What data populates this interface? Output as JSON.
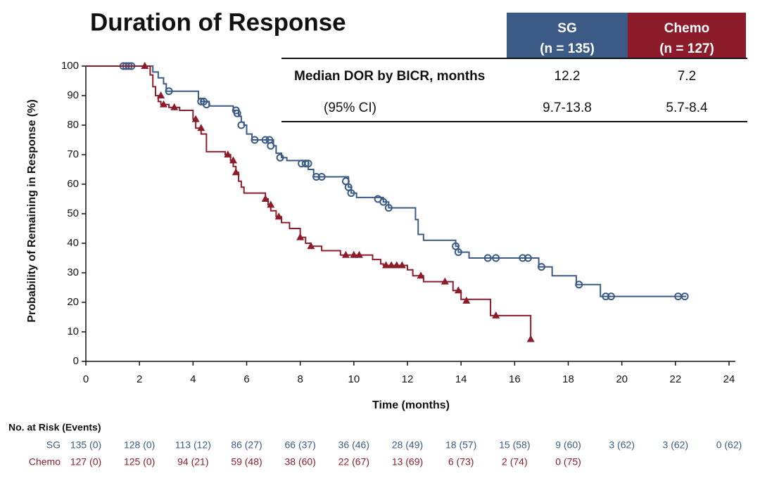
{
  "chart_data": {
    "type": "step",
    "title": "Duration of Response",
    "x_label": "Time (months)",
    "y_label": "Probability of Remaining in Response (%)",
    "xlim": [
      0,
      24
    ],
    "ylim": [
      0,
      100
    ],
    "xticks": [
      0,
      2,
      4,
      6,
      8,
      10,
      12,
      14,
      16,
      18,
      20,
      22,
      24
    ],
    "yticks": [
      0,
      10,
      20,
      30,
      40,
      50,
      60,
      70,
      80,
      90,
      100
    ],
    "series": [
      {
        "name": "SG",
        "color": "#3b5a85",
        "marker": "circle",
        "x": [
          0,
          2.5,
          2.7,
          2.9,
          3.0,
          4.2,
          4.3,
          4.6,
          5.5,
          5.7,
          5.8,
          5.9,
          6.0,
          6.2,
          7.0,
          7.1,
          7.3,
          7.5,
          8.3,
          8.5,
          9.8,
          9.9,
          10.1,
          11.1,
          11.3,
          12.3,
          12.4,
          12.6,
          13.8,
          13.9,
          14.3,
          16.9,
          17.4,
          18.3,
          19.2,
          22.4
        ],
        "values": [
          100,
          98,
          96,
          94,
          91.5,
          89,
          88,
          86.5,
          85,
          83,
          81,
          80,
          77,
          75,
          73,
          70.5,
          69,
          68,
          65,
          62.5,
          59,
          57,
          55.5,
          54,
          52,
          48,
          43,
          41,
          39,
          37,
          35,
          32,
          29,
          26,
          22,
          22
        ],
        "censor_x": [
          1.4,
          1.5,
          1.6,
          1.7,
          3.1,
          4.3,
          4.4,
          4.5,
          5.6,
          5.65,
          5.8,
          6.3,
          6.7,
          6.85,
          6.9,
          7.25,
          8.05,
          8.2,
          8.3,
          8.6,
          8.8,
          9.7,
          9.8,
          9.9,
          10.9,
          11.1,
          11.3,
          13.8,
          13.9,
          15.0,
          15.3,
          16.3,
          16.5,
          17.0,
          18.4,
          19.4,
          19.6,
          22.1,
          22.35
        ],
        "censor_y": [
          100,
          100,
          100,
          100,
          91.5,
          88,
          88,
          87,
          85,
          84,
          80,
          75,
          75,
          75,
          73,
          69,
          67,
          67,
          67,
          62.5,
          62.5,
          61,
          59,
          57,
          55,
          54,
          52,
          39,
          37,
          35,
          35,
          35,
          35,
          32,
          26,
          22,
          22,
          22,
          22
        ]
      },
      {
        "name": "Chemo",
        "color": "#8c1c2a",
        "marker": "triangle",
        "x": [
          0,
          2.4,
          2.5,
          2.6,
          2.7,
          2.8,
          3.1,
          3.5,
          4.0,
          4.1,
          4.3,
          4.5,
          5.2,
          5.4,
          5.5,
          5.6,
          5.7,
          5.8,
          5.9,
          6.7,
          6.8,
          6.9,
          7.1,
          7.3,
          7.6,
          8.0,
          8.2,
          8.4,
          8.8,
          9.5,
          10.7,
          11.0,
          11.1,
          12.0,
          12.2,
          12.6,
          13.7,
          14.0,
          15.1,
          16.6
        ],
        "values": [
          100,
          97,
          93,
          90,
          88,
          87,
          86,
          85,
          82,
          79,
          77,
          71,
          70,
          68,
          66,
          64,
          61,
          59,
          57,
          55,
          53,
          51,
          49,
          47,
          45,
          42,
          40,
          39,
          37.5,
          36,
          34.5,
          33,
          32.5,
          31,
          29,
          27,
          24,
          21,
          15.5,
          8
        ],
        "censor_x": [
          2.2,
          2.8,
          2.9,
          3.3,
          4.1,
          4.3,
          5.3,
          5.5,
          5.6,
          6.7,
          6.9,
          7.2,
          8.0,
          8.4,
          9.7,
          10.0,
          10.2,
          11.2,
          11.4,
          11.6,
          11.8,
          12.5,
          13.4,
          13.9,
          14.2,
          15.3,
          16.6
        ],
        "censor_y": [
          100,
          90,
          87,
          86,
          82,
          79,
          70,
          68,
          64,
          55,
          53,
          49,
          42,
          39,
          36,
          36,
          36,
          32.5,
          32.5,
          32.5,
          32.5,
          29,
          27,
          24,
          20.5,
          15.5,
          7.5
        ]
      }
    ]
  },
  "summary_table": {
    "header": [
      [
        "SG",
        "(n = 135)"
      ],
      [
        "Chemo",
        "(n = 127)"
      ]
    ],
    "rows": [
      [
        "Median DOR by BICR, months",
        "12.2",
        "7.2"
      ],
      [
        "(95% CI)",
        "9.7-13.8",
        "5.7-8.4"
      ]
    ]
  },
  "risk_table": {
    "title": "No. at Risk (Events)",
    "rows": [
      {
        "name": "SG",
        "values": [
          "135 (0)",
          "128 (0)",
          "113 (12)",
          "86 (27)",
          "66 (37)",
          "36 (46)",
          "28 (49)",
          "18 (57)",
          "15 (58)",
          "9 (60)",
          "3 (62)",
          "3 (62)",
          "0 (62)"
        ]
      },
      {
        "name": "Chemo",
        "values": [
          "127 (0)",
          "125 (0)",
          "94 (21)",
          "59 (48)",
          "38 (60)",
          "22 (67)",
          "13 (69)",
          "6 (73)",
          "2 (74)",
          "0 (75)"
        ]
      }
    ]
  }
}
